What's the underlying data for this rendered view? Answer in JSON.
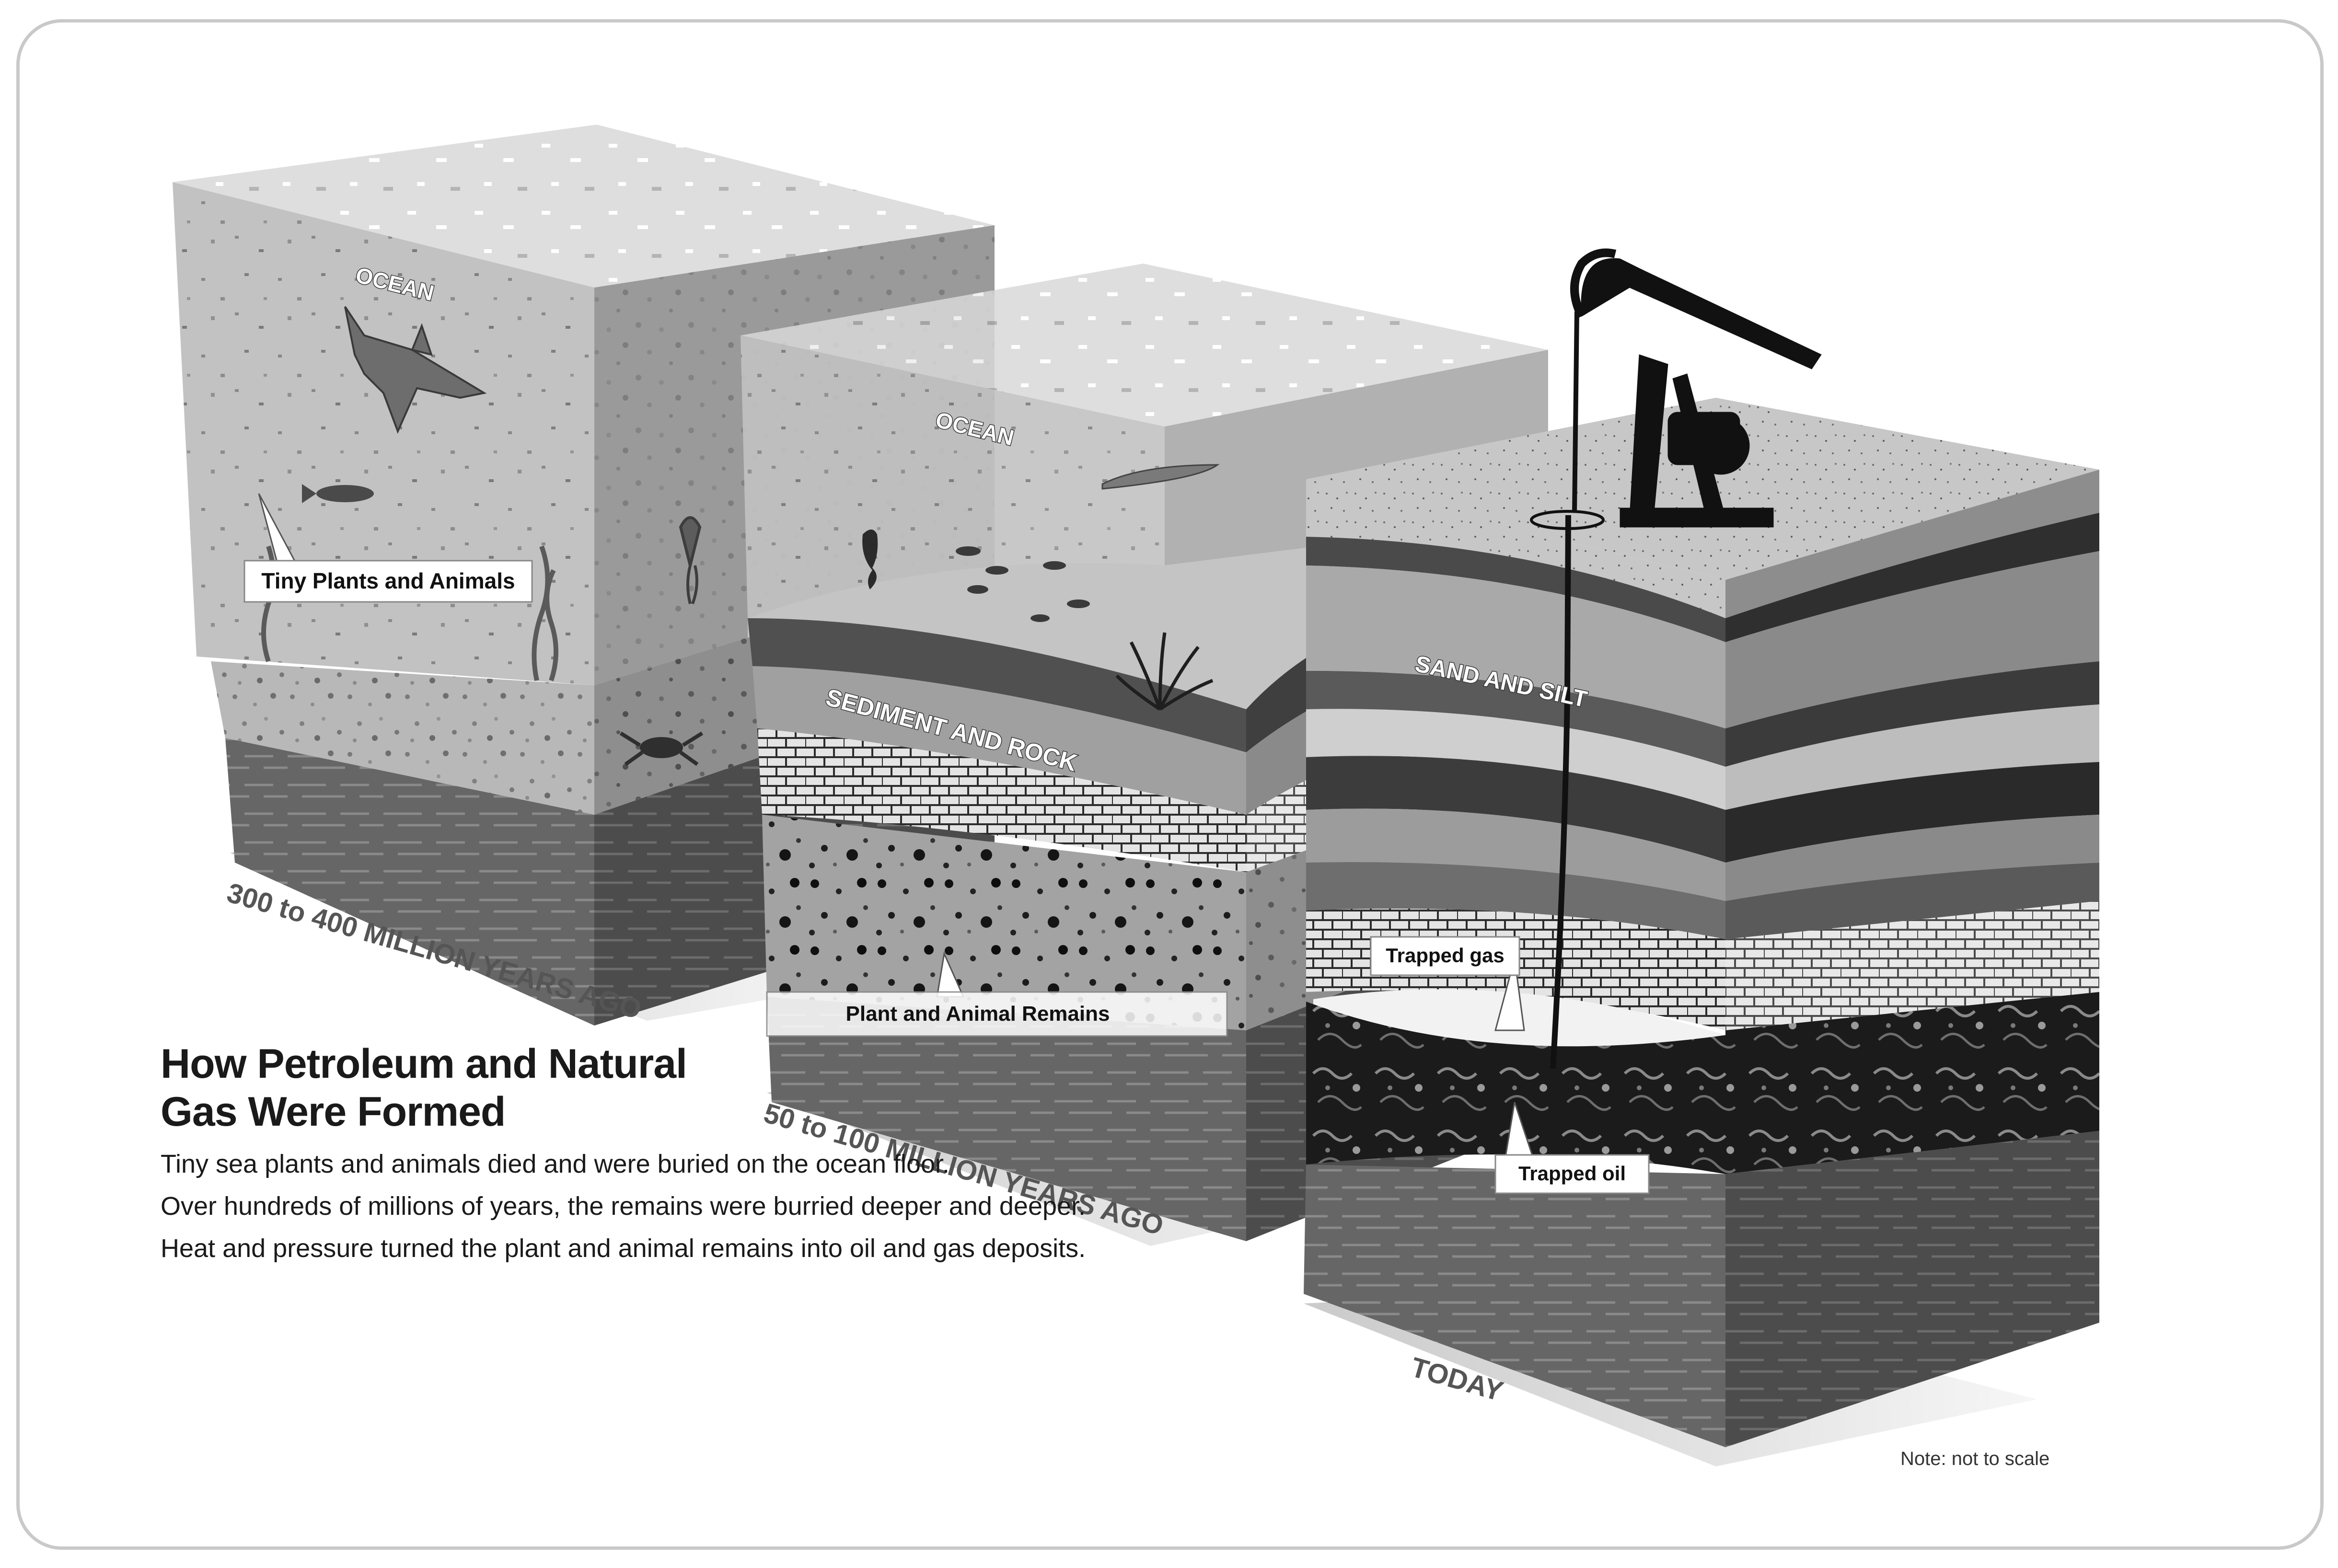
{
  "stages": [
    {
      "time_label": "300 to 400 MILLION YEARS AGO",
      "layer_labels": [
        "OCEAN"
      ],
      "callout": "Tiny Plants and Animals"
    },
    {
      "time_label": "50 to 100 MILLION YEARS AGO",
      "layer_labels": [
        "OCEAN",
        "SEDIMENT AND ROCK"
      ],
      "callout": "Plant and Animal Remains"
    },
    {
      "time_label": "TODAY",
      "layer_labels": [
        "SAND AND SILT"
      ],
      "callouts": [
        "Trapped gas",
        "Trapped oil"
      ]
    }
  ],
  "caption": {
    "title": "How Petroleum and Natural Gas Were Formed",
    "paragraphs": [
      "Tiny sea plants and animals died and were buried on the ocean floor.",
      "Over hundreds of millions of years, the remains were burried deeper and deeper.",
      "Heat and pressure turned the plant and animal remains into oil and gas deposits."
    ]
  },
  "note": "Note: not to scale"
}
